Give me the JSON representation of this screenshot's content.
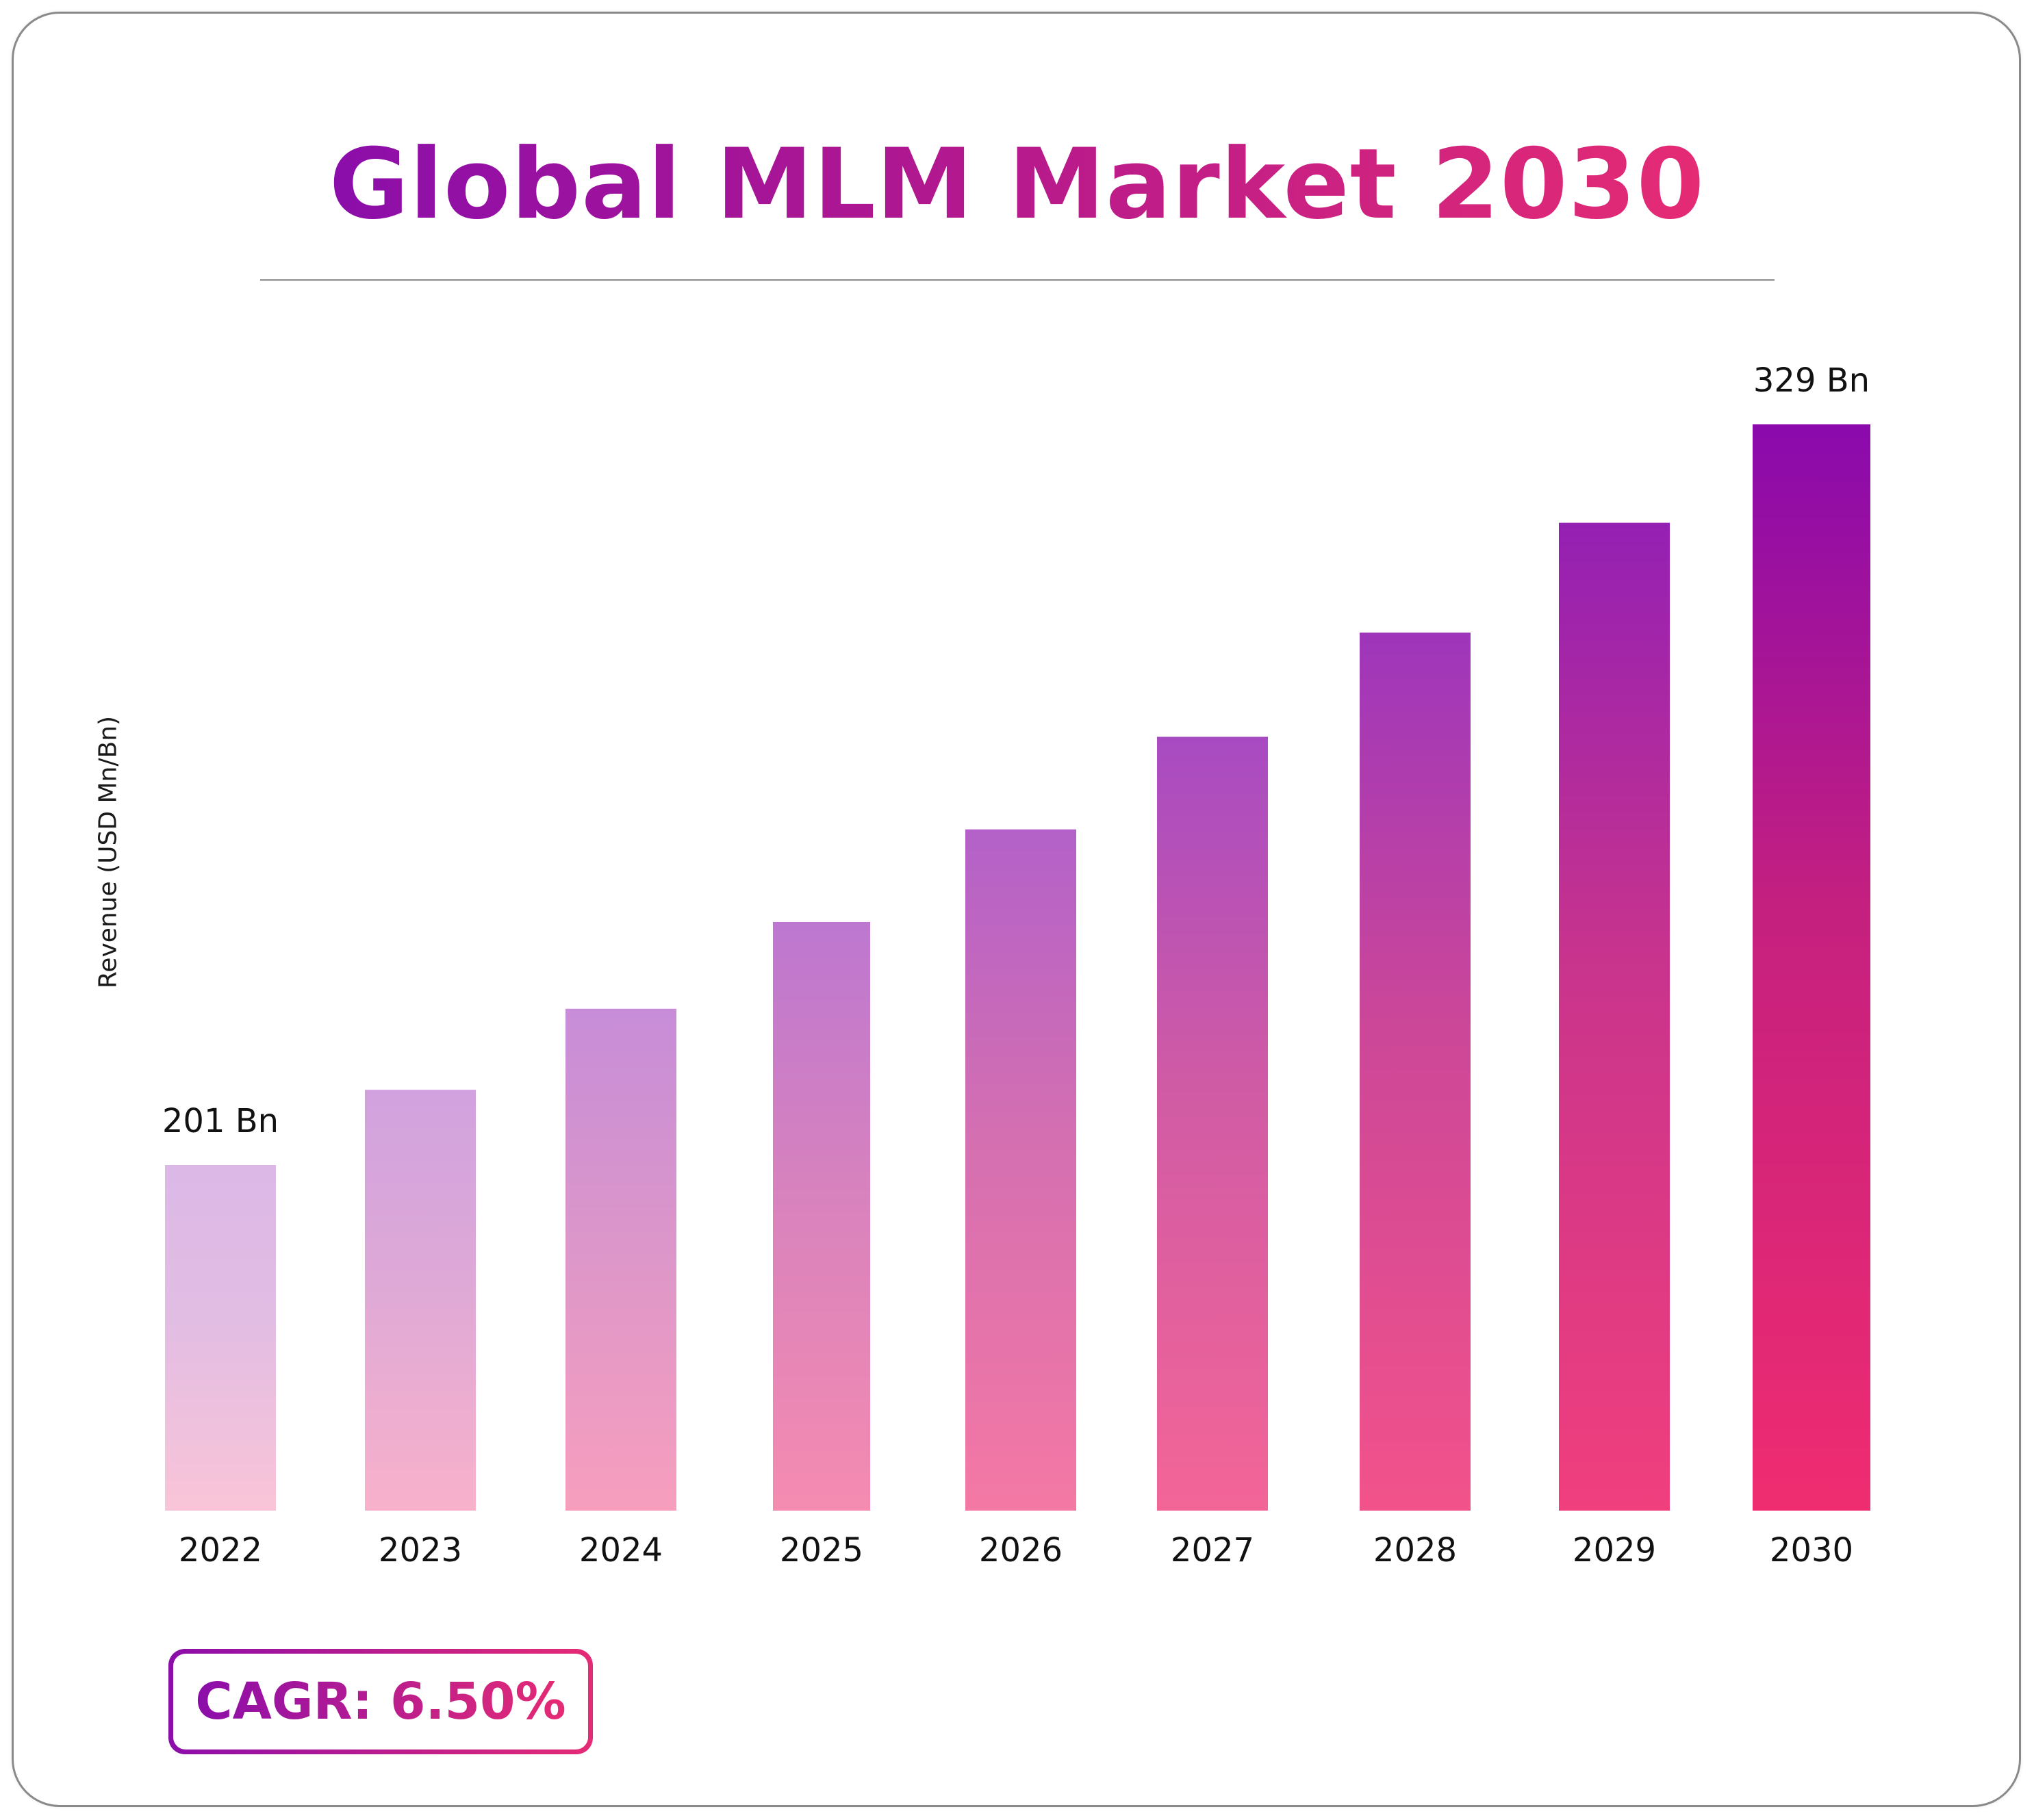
{
  "title": "Global MLM Market 2030",
  "cagr_label": "CAGR: 6.50%",
  "colors": {
    "purple": "#8b0eaa",
    "pink": "#ee2d70",
    "light_purple": "#d9b6e6",
    "light_pink": "#f9c3d7"
  },
  "chart_data": {
    "type": "bar",
    "title": "Global MLM Market 2030",
    "xlabel": "",
    "ylabel": "Revenue (USD Mn/Bn)",
    "categories": [
      "2022",
      "2023",
      "2024",
      "2025",
      "2026",
      "2027",
      "2028",
      "2029",
      "2030"
    ],
    "values": [
      201,
      214,
      228,
      243,
      259,
      275,
      293,
      312,
      329
    ],
    "data_labels": [
      {
        "index": 0,
        "text": "201 Bn"
      },
      {
        "index": 8,
        "text": "329 Bn"
      }
    ],
    "grid": false,
    "legend": "none"
  }
}
